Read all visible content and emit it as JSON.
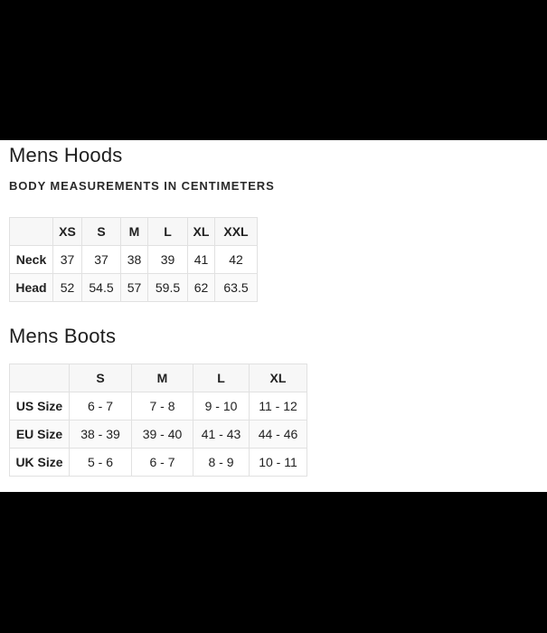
{
  "page": {
    "top_bar_color": "#000000",
    "bottom_bar_color": "#000000",
    "background": "#ffffff",
    "text_color": "#212121",
    "border_color": "#e1e1e1",
    "header_row_bg": "#f7f7f7"
  },
  "sections": [
    {
      "title": "Mens Hoods",
      "subtitle": "BODY MEASUREMENTS IN CENTIMETERS",
      "table": {
        "columns": [
          "",
          "XS",
          "S",
          "M",
          "L",
          "XL",
          "XXL"
        ],
        "rows": [
          {
            "label": "Neck",
            "values": [
              "37",
              "37",
              "38",
              "39",
              "41",
              "42"
            ]
          },
          {
            "label": "Head",
            "values": [
              "52",
              "54.5",
              "57",
              "59.5",
              "62",
              "63.5"
            ]
          }
        ]
      }
    },
    {
      "title": "Mens Boots",
      "table": {
        "columns": [
          "",
          "S",
          "M",
          "L",
          "XL"
        ],
        "rows": [
          {
            "label": "US Size",
            "values": [
              "6 - 7",
              "7 - 8",
              "9 - 10",
              "11 - 12"
            ]
          },
          {
            "label": "EU Size",
            "values": [
              "38 - 39",
              "39 - 40",
              "41 - 43",
              "44 - 46"
            ]
          },
          {
            "label": "UK Size",
            "values": [
              "5 - 6",
              "6 - 7",
              "8 - 9",
              "10 - 11"
            ]
          }
        ]
      }
    }
  ]
}
